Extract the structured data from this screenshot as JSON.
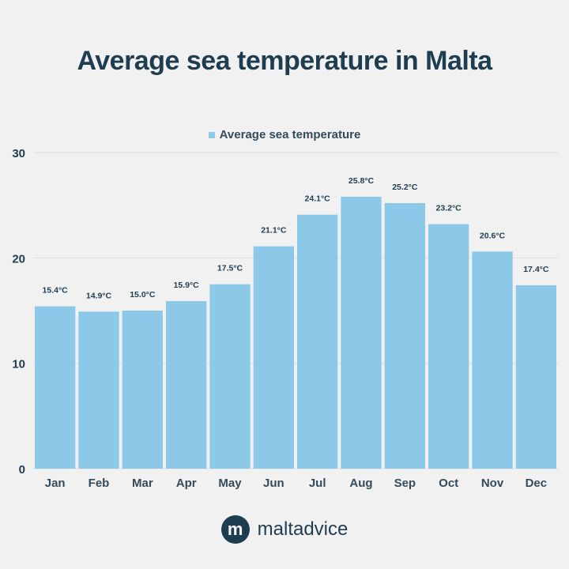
{
  "chart_data": {
    "type": "bar",
    "title": "Average sea temperature in Malta",
    "xlabel": "",
    "ylabel": "",
    "categories": [
      "Jan",
      "Feb",
      "Mar",
      "Apr",
      "May",
      "Jun",
      "Jul",
      "Aug",
      "Sep",
      "Oct",
      "Nov",
      "Dec"
    ],
    "series": [
      {
        "name": "Average sea temperature",
        "values": [
          15.4,
          14.9,
          15.0,
          15.9,
          17.5,
          21.1,
          24.1,
          25.8,
          25.2,
          23.2,
          20.6,
          17.4
        ],
        "labels": [
          "15.4°C",
          "14.9°C",
          "15.0°C",
          "15.9°C",
          "17.5°C",
          "21.1°C",
          "24.1°C",
          "25.8°C",
          "25.2°C",
          "23.2°C",
          "20.6°C",
          "17.4°C"
        ]
      }
    ],
    "ylim": [
      0,
      30
    ],
    "yticks": [
      0,
      10,
      20,
      30
    ],
    "grid": true,
    "legend": "top-center",
    "colors": {
      "bar": "#8cc8e8",
      "text": "#1f3d50",
      "grid": "#dddddd"
    }
  },
  "brand": {
    "logo_letter": "m",
    "name": "maltadvice"
  }
}
